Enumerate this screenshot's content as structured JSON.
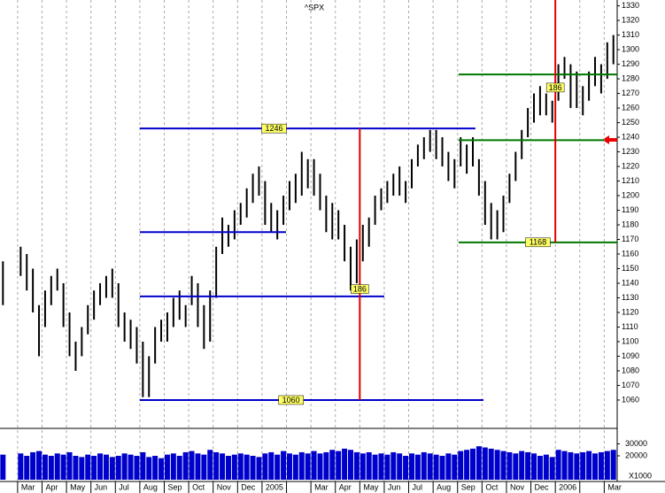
{
  "chart_data": {
    "type": "ohlc",
    "title": "^SPX",
    "color": "#000000",
    "x": [
      -0.6,
      0.125,
      0.375,
      0.625,
      0.875,
      1.125,
      1.375,
      1.625,
      1.875,
      2.125,
      2.375,
      2.625,
      2.875,
      3.125,
      3.375,
      3.625,
      3.875,
      4.125,
      4.375,
      4.625,
      4.875,
      5.125,
      5.375,
      5.625,
      5.875,
      6.125,
      6.375,
      6.625,
      6.875,
      7.125,
      7.375,
      7.625,
      7.875,
      8.125,
      8.375,
      8.625,
      8.875,
      9.125,
      9.375,
      9.625,
      9.875,
      10.125,
      10.375,
      10.625,
      10.875,
      11.125,
      11.375,
      11.625,
      11.875,
      12.125,
      12.375,
      12.625,
      12.875,
      13.125,
      13.375,
      13.625,
      13.875,
      14.125,
      14.375,
      14.625,
      14.875,
      15.125,
      15.375,
      15.625,
      15.875,
      16.125,
      16.375,
      16.625,
      16.875,
      17.125,
      17.375,
      17.625,
      17.875,
      18.125,
      18.375,
      18.625,
      18.875,
      19.125,
      19.375,
      19.625,
      19.875,
      20.125,
      20.375,
      20.625,
      20.875,
      21.125,
      21.375,
      21.625,
      21.875,
      22.125,
      22.375,
      22.625,
      22.875,
      23.125,
      23.375,
      23.625,
      23.875,
      24.125,
      24.375
    ],
    "high": [
      1155,
      1165,
      1160,
      1150,
      1125,
      1135,
      1145,
      1150,
      1140,
      1120,
      1100,
      1110,
      1125,
      1135,
      1140,
      1145,
      1150,
      1140,
      1120,
      1115,
      1110,
      1100,
      1090,
      1110,
      1115,
      1120,
      1130,
      1135,
      1125,
      1145,
      1140,
      1125,
      1135,
      1165,
      1185,
      1180,
      1190,
      1195,
      1205,
      1215,
      1220,
      1210,
      1195,
      1190,
      1200,
      1210,
      1215,
      1230,
      1225,
      1225,
      1215,
      1200,
      1195,
      1190,
      1180,
      1165,
      1170,
      1180,
      1185,
      1200,
      1205,
      1210,
      1215,
      1220,
      1210,
      1225,
      1235,
      1240,
      1245,
      1245,
      1240,
      1230,
      1225,
      1240,
      1235,
      1240,
      1225,
      1210,
      1195,
      1190,
      1200,
      1215,
      1230,
      1245,
      1260,
      1270,
      1275,
      1270,
      1265,
      1290,
      1295,
      1290,
      1285,
      1275,
      1285,
      1295,
      1290,
      1305,
      1310
    ],
    "low": [
      1125,
      1145,
      1135,
      1120,
      1090,
      1110,
      1125,
      1135,
      1110,
      1090,
      1080,
      1090,
      1105,
      1115,
      1125,
      1130,
      1130,
      1110,
      1100,
      1095,
      1085,
      1062,
      1062,
      1085,
      1100,
      1100,
      1110,
      1115,
      1110,
      1125,
      1110,
      1095,
      1100,
      1130,
      1160,
      1165,
      1170,
      1180,
      1185,
      1195,
      1200,
      1180,
      1175,
      1170,
      1180,
      1190,
      1195,
      1200,
      1205,
      1200,
      1190,
      1175,
      1170,
      1170,
      1155,
      1135,
      1140,
      1155,
      1165,
      1180,
      1190,
      1195,
      1200,
      1200,
      1195,
      1205,
      1220,
      1225,
      1230,
      1225,
      1220,
      1210,
      1205,
      1220,
      1215,
      1220,
      1200,
      1180,
      1170,
      1170,
      1175,
      1195,
      1210,
      1225,
      1240,
      1250,
      1255,
      1255,
      1250,
      1265,
      1280,
      1260,
      1260,
      1255,
      1265,
      1275,
      1270,
      1280,
      1290
    ],
    "xlim": [
      -0.72,
      24.53
    ],
    "ylim": [
      1043,
      1334
    ],
    "yticks": [
      1060,
      1070,
      1080,
      1090,
      1100,
      1110,
      1120,
      1130,
      1140,
      1150,
      1160,
      1170,
      1180,
      1190,
      1200,
      1210,
      1220,
      1230,
      1240,
      1250,
      1260,
      1270,
      1280,
      1290,
      1300,
      1310,
      1320,
      1330
    ],
    "xticks": [
      {
        "value": 0,
        "label": "Mar"
      },
      {
        "value": 1,
        "label": "Apr"
      },
      {
        "value": 2,
        "label": "May"
      },
      {
        "value": 3,
        "label": "Jun"
      },
      {
        "value": 4,
        "label": "Jul"
      },
      {
        "value": 5,
        "label": "Aug"
      },
      {
        "value": 6,
        "label": "Sep"
      },
      {
        "value": 7,
        "label": "Oct"
      },
      {
        "value": 8,
        "label": "Nov"
      },
      {
        "value": 9,
        "label": "Dec"
      },
      {
        "value": 10,
        "label": "2005"
      },
      {
        "value": 11,
        "label": null
      },
      {
        "value": 12,
        "label": "Mar"
      },
      {
        "value": 13,
        "label": "Apr"
      },
      {
        "value": 14,
        "label": "May"
      },
      {
        "value": 15,
        "label": "Jun"
      },
      {
        "value": 16,
        "label": "Jul"
      },
      {
        "value": 17,
        "label": "Aug"
      },
      {
        "value": 18,
        "label": "Sep"
      },
      {
        "value": 19,
        "label": "Oct"
      },
      {
        "value": 20,
        "label": "Nov"
      },
      {
        "value": 21,
        "label": "Dec"
      },
      {
        "value": 22,
        "label": "2006"
      },
      {
        "value": 23,
        "label": null
      },
      {
        "value": 24,
        "label": "Mar"
      }
    ],
    "grid": true,
    "levels": [
      {
        "y": 1246,
        "x0": 5,
        "x1": 18.73,
        "color": "#0000cc",
        "labeled": true
      },
      {
        "y": 1175,
        "x0": 5,
        "x1": 10.98,
        "color": "#0000cc",
        "labeled": false
      },
      {
        "y": 1131,
        "x0": 5,
        "x1": 15,
        "color": "#0000cc",
        "labeled": false
      },
      {
        "y": 1060,
        "x0": 5,
        "x1": 19.06,
        "color": "#0000cc",
        "labeled": true
      },
      {
        "y": 1283,
        "x0": 18.04,
        "x1": 24.53,
        "color": "#007700",
        "labeled": false
      },
      {
        "y": 1238,
        "x0": 18.04,
        "x1": 24,
        "color": "#007700",
        "labeled": false
      },
      {
        "y": 1168,
        "x0": 18.04,
        "x1": 24.53,
        "color": "#007700",
        "labeled": true
      }
    ],
    "ranges": [
      {
        "x": 14,
        "from": 1060,
        "to": 1246,
        "label": 186,
        "color": "#dd0000"
      },
      {
        "x": 22,
        "from": 1168,
        "to": 1354,
        "label": 186,
        "color": "#dd0000"
      }
    ],
    "volume": {
      "unit_label": "X1000",
      "color": "#0000cc",
      "ylim": [
        0,
        40000
      ],
      "yticks": [
        20000,
        30000
      ],
      "values": [
        21000,
        22000,
        20000,
        23000,
        24000,
        21000,
        20000,
        22000,
        21000,
        23000,
        20000,
        19000,
        21000,
        20000,
        22000,
        21000,
        19000,
        20000,
        22000,
        21000,
        20000,
        23000,
        19000,
        20000,
        18000,
        21000,
        22000,
        20000,
        23000,
        24000,
        22000,
        21000,
        25000,
        23000,
        22000,
        20000,
        21000,
        22000,
        21000,
        20000,
        19000,
        22000,
        23000,
        21000,
        24000,
        22000,
        21000,
        23000,
        22000,
        24000,
        22000,
        23000,
        25000,
        24000,
        26000,
        25000,
        23000,
        22000,
        23000,
        21000,
        22000,
        21000,
        23000,
        22000,
        20000,
        22000,
        21000,
        23000,
        22000,
        21000,
        20000,
        22000,
        21000,
        24000,
        25000,
        26000,
        28000,
        27000,
        26000,
        25000,
        24000,
        23000,
        22000,
        24000,
        23000,
        22000,
        20000,
        21000,
        19000,
        25000,
        24000,
        23000,
        22000,
        23000,
        24000,
        22000,
        23000,
        24000,
        25000
      ]
    }
  }
}
